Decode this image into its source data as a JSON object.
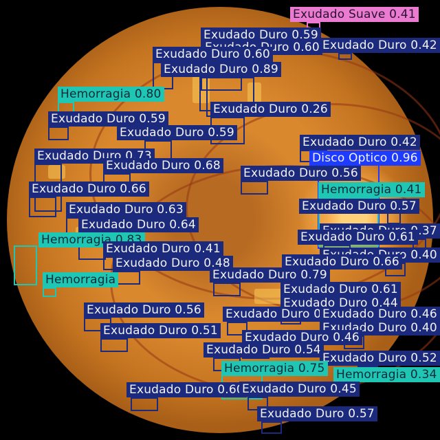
{
  "classes": {
    "duro": {
      "name": "Exudado Duro",
      "color": "#1c2a7e"
    },
    "hem": {
      "name": "Hemorragia",
      "color": "#20c6b4"
    },
    "disc": {
      "name": "Disco Optico",
      "color": "#1e3cff"
    },
    "suave": {
      "name": "Exudado Suave",
      "color": "#ea7bd0"
    }
  },
  "detections": [
    {
      "cls": "suave",
      "text": "Exudado Suave 0.41"
    },
    {
      "cls": "duro",
      "text": "Exudado Duro 0.59"
    },
    {
      "cls": "duro",
      "text": "Exudado Duro 0.60"
    },
    {
      "cls": "duro",
      "text": "Exudado Duro 0.42"
    },
    {
      "cls": "duro",
      "text": "Exudado Duro 0.60"
    },
    {
      "cls": "duro",
      "text": "Exudado Duro 0.89"
    },
    {
      "cls": "hem",
      "text": "Hemorragia 0.80"
    },
    {
      "cls": "duro",
      "text": "Exudado Duro 0.26"
    },
    {
      "cls": "duro",
      "text": "Exudado Duro 0.59"
    },
    {
      "cls": "duro",
      "text": "Exudado Duro 0.59"
    },
    {
      "cls": "duro",
      "text": "Exudado Duro 0.42"
    },
    {
      "cls": "disc",
      "text": "Disco Optico 0.96"
    },
    {
      "cls": "duro",
      "text": "Exudado Duro 0.73"
    },
    {
      "cls": "duro",
      "text": "Exudado Duro 0.68"
    },
    {
      "cls": "duro",
      "text": "Exudado Duro 0.56"
    },
    {
      "cls": "hem",
      "text": "Hemorragia 0.41"
    },
    {
      "cls": "duro",
      "text": "Exudado Duro 0.66"
    },
    {
      "cls": "duro",
      "text": "Exudado Duro 0.57"
    },
    {
      "cls": "duro",
      "text": "Exudado Duro 0.63"
    },
    {
      "cls": "duro",
      "text": "Exudado Duro 0.64"
    },
    {
      "cls": "duro",
      "text": "Exudado Duro 0.37"
    },
    {
      "cls": "hem",
      "text": "Hemorragia 0.83"
    },
    {
      "cls": "duro",
      "text": "Exudado Duro 0.61"
    },
    {
      "cls": "duro",
      "text": "Exudado Duro 0.41"
    },
    {
      "cls": "duro",
      "text": "Exudado Duro 0.40"
    },
    {
      "cls": "duro",
      "text": "Exudado Duro 0.48"
    },
    {
      "cls": "duro",
      "text": "Exudado Duro 0.66"
    },
    {
      "cls": "hem",
      "text": "Hemorragia"
    },
    {
      "cls": "duro",
      "text": "Exudado Duro 0.79"
    },
    {
      "cls": "duro",
      "text": "Exudado Duro 0.61"
    },
    {
      "cls": "duro",
      "text": "Exudado Duro 0.44"
    },
    {
      "cls": "duro",
      "text": "Exudado Duro 0.56"
    },
    {
      "cls": "duro",
      "text": "Exudado Duro 0.50"
    },
    {
      "cls": "duro",
      "text": "Exudado Duro 0.46"
    },
    {
      "cls": "duro",
      "text": "Exudado Duro 0.51"
    },
    {
      "cls": "duro",
      "text": "Exudado Duro 0.40"
    },
    {
      "cls": "duro",
      "text": "Exudado Duro 0.46"
    },
    {
      "cls": "duro",
      "text": "Exudado Duro 0.54"
    },
    {
      "cls": "duro",
      "text": "Exudado Duro 0.52"
    },
    {
      "cls": "hem",
      "text": "Hemorragia 0.75"
    },
    {
      "cls": "hem",
      "text": "Hemorragia 0.34"
    },
    {
      "cls": "duro",
      "text": "Exudado Duro 0.60"
    },
    {
      "cls": "duro",
      "text": "Exudado Duro 0.45"
    },
    {
      "cls": "duro",
      "text": "Exudado Duro 0.57"
    }
  ]
}
